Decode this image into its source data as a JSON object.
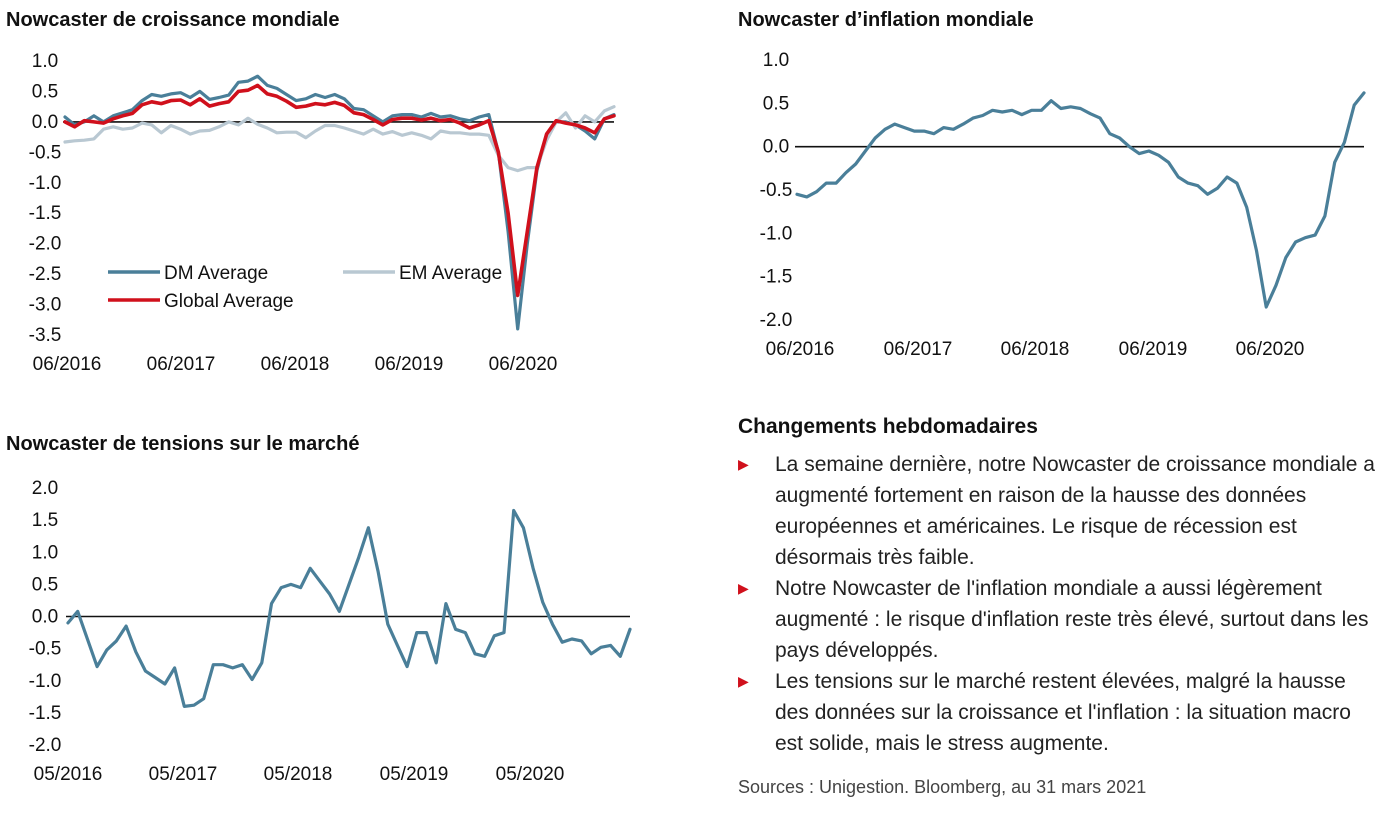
{
  "colors": {
    "dm": "#4a7f99",
    "em": "#b9c8d2",
    "global": "#d0101c",
    "tension": "#4a7f99",
    "inflation": "#4a7f99",
    "bullet": "#d0101c"
  },
  "chart_data": [
    {
      "id": "growth",
      "type": "line",
      "title": "Nowcaster de croissance mondiale",
      "xlabel": "",
      "ylabel": "",
      "ylim": [
        -3.5,
        1.0
      ],
      "yticks": [
        "1.0",
        "0.5",
        "0.0",
        "-0.5",
        "-1.0",
        "-1.5",
        "-2.0",
        "-2.5",
        "-3.0",
        "-3.5"
      ],
      "xticks": [
        "06/2016",
        "06/2017",
        "06/2018",
        "06/2019",
        "06/2020"
      ],
      "legend": [
        "DM Average",
        "EM Average",
        "Global Average"
      ],
      "series": [
        {
          "name": "DM Average",
          "color_key": "dm",
          "values": [
            0.08,
            -0.05,
            0.0,
            0.1,
            0.0,
            0.1,
            0.15,
            0.2,
            0.35,
            0.45,
            0.42,
            0.46,
            0.48,
            0.4,
            0.5,
            0.37,
            0.4,
            0.44,
            0.65,
            0.67,
            0.75,
            0.6,
            0.55,
            0.45,
            0.35,
            0.38,
            0.45,
            0.4,
            0.45,
            0.38,
            0.22,
            0.2,
            0.1,
            0.0,
            0.1,
            0.12,
            0.12,
            0.08,
            0.14,
            0.08,
            0.1,
            0.05,
            0.02,
            0.08,
            0.12,
            -0.5,
            -1.8,
            -3.4,
            -2.0,
            -0.8,
            -0.2,
            0.0,
            0.0,
            -0.05,
            -0.15,
            -0.28,
            0.05,
            0.12
          ]
        },
        {
          "name": "EM Average",
          "color_key": "em",
          "values": [
            -0.33,
            -0.31,
            -0.3,
            -0.28,
            -0.12,
            -0.08,
            -0.12,
            -0.1,
            -0.02,
            -0.05,
            -0.18,
            -0.06,
            -0.12,
            -0.2,
            -0.15,
            -0.14,
            -0.08,
            0.0,
            -0.05,
            0.06,
            -0.04,
            -0.1,
            -0.18,
            -0.17,
            -0.17,
            -0.26,
            -0.15,
            -0.06,
            -0.06,
            -0.1,
            -0.15,
            -0.2,
            -0.12,
            -0.2,
            -0.16,
            -0.22,
            -0.18,
            -0.22,
            -0.28,
            -0.15,
            -0.18,
            -0.18,
            -0.2,
            -0.2,
            -0.22,
            -0.55,
            -0.75,
            -0.8,
            -0.75,
            -0.75,
            -0.3,
            0.0,
            0.15,
            -0.1,
            0.1,
            0.0,
            0.18,
            0.25
          ]
        },
        {
          "name": "Global Average",
          "color_key": "global",
          "values": [
            0.0,
            -0.08,
            0.02,
            0.0,
            -0.02,
            0.05,
            0.1,
            0.14,
            0.28,
            0.33,
            0.3,
            0.35,
            0.36,
            0.28,
            0.38,
            0.26,
            0.3,
            0.33,
            0.5,
            0.52,
            0.6,
            0.46,
            0.42,
            0.34,
            0.24,
            0.26,
            0.3,
            0.28,
            0.32,
            0.27,
            0.15,
            0.12,
            0.04,
            -0.05,
            0.04,
            0.06,
            0.06,
            0.03,
            0.06,
            0.02,
            0.04,
            -0.02,
            -0.1,
            -0.05,
            0.02,
            -0.5,
            -1.5,
            -2.85,
            -1.8,
            -0.75,
            -0.2,
            0.02,
            -0.02,
            -0.05,
            -0.1,
            -0.18,
            0.05,
            0.1
          ]
        }
      ]
    },
    {
      "id": "inflation",
      "type": "line",
      "title": "Nowcaster d’inflation mondiale",
      "xlabel": "",
      "ylabel": "",
      "ylim": [
        -2.0,
        1.0
      ],
      "yticks": [
        "1.0",
        "0.5",
        "0.0",
        "-0.5",
        "-1.0",
        "-1.5",
        "-2.0"
      ],
      "xticks": [
        "06/2016",
        "06/2017",
        "06/2018",
        "06/2019",
        "06/2020"
      ],
      "series": [
        {
          "name": "",
          "color_key": "inflation",
          "values": [
            -0.55,
            -0.58,
            -0.52,
            -0.42,
            -0.42,
            -0.3,
            -0.2,
            -0.05,
            0.1,
            0.2,
            0.26,
            0.22,
            0.18,
            0.18,
            0.15,
            0.22,
            0.2,
            0.26,
            0.33,
            0.36,
            0.42,
            0.4,
            0.42,
            0.37,
            0.42,
            0.42,
            0.53,
            0.44,
            0.46,
            0.44,
            0.38,
            0.33,
            0.15,
            0.1,
            0.0,
            -0.08,
            -0.05,
            -0.1,
            -0.18,
            -0.35,
            -0.42,
            -0.45,
            -0.55,
            -0.48,
            -0.35,
            -0.42,
            -0.7,
            -1.2,
            -1.85,
            -1.6,
            -1.28,
            -1.1,
            -1.05,
            -1.02,
            -0.8,
            -0.18,
            0.05,
            0.48,
            0.62
          ]
        }
      ]
    },
    {
      "id": "tension",
      "type": "line",
      "title": "Nowcaster de tensions sur le marché",
      "xlabel": "",
      "ylabel": "",
      "ylim": [
        -2.0,
        2.0
      ],
      "yticks": [
        "2.0",
        "1.5",
        "1.0",
        "0.5",
        "0.0",
        "-0.5",
        "-1.0",
        "-1.5",
        "-2.0"
      ],
      "xticks": [
        "05/2016",
        "05/2017",
        "05/2018",
        "05/2019",
        "05/2020"
      ],
      "series": [
        {
          "name": "",
          "color_key": "tension",
          "values": [
            -0.1,
            0.08,
            -0.35,
            -0.78,
            -0.52,
            -0.38,
            -0.15,
            -0.55,
            -0.85,
            -0.95,
            -1.05,
            -0.8,
            -1.4,
            -1.38,
            -1.28,
            -0.75,
            -0.75,
            -0.8,
            -0.75,
            -0.98,
            -0.72,
            0.2,
            0.45,
            0.5,
            0.45,
            0.75,
            0.55,
            0.35,
            0.08,
            0.5,
            0.92,
            1.38,
            0.7,
            -0.12,
            -0.45,
            -0.78,
            -0.25,
            -0.25,
            -0.72,
            0.2,
            -0.2,
            -0.25,
            -0.58,
            -0.62,
            -0.3,
            -0.25,
            1.65,
            1.38,
            0.75,
            0.22,
            -0.12,
            -0.4,
            -0.35,
            -0.38,
            -0.58,
            -0.48,
            -0.45,
            -0.62,
            -0.2
          ]
        }
      ]
    }
  ],
  "notes": {
    "title": "Changements hebdomadaires",
    "items": [
      "La semaine dernière, notre Nowcaster de croissance mondiale a augmenté fortement en raison de la hausse des données européennes et américaines. Le risque de récession est désormais très faible.",
      "Notre Nowcaster de l'inflation mondiale a aussi légèrement augmenté : le risque d'inflation reste très élevé, surtout dans les pays développés.",
      "Les tensions sur le marché restent élevées, malgré la hausse des données sur la croissance et l'inflation : la situation macro est solide, mais le stress augmente."
    ],
    "bullet_glyph": "▶"
  },
  "sources": "Sources : Unigestion. Bloomberg, au 31 mars 2021"
}
